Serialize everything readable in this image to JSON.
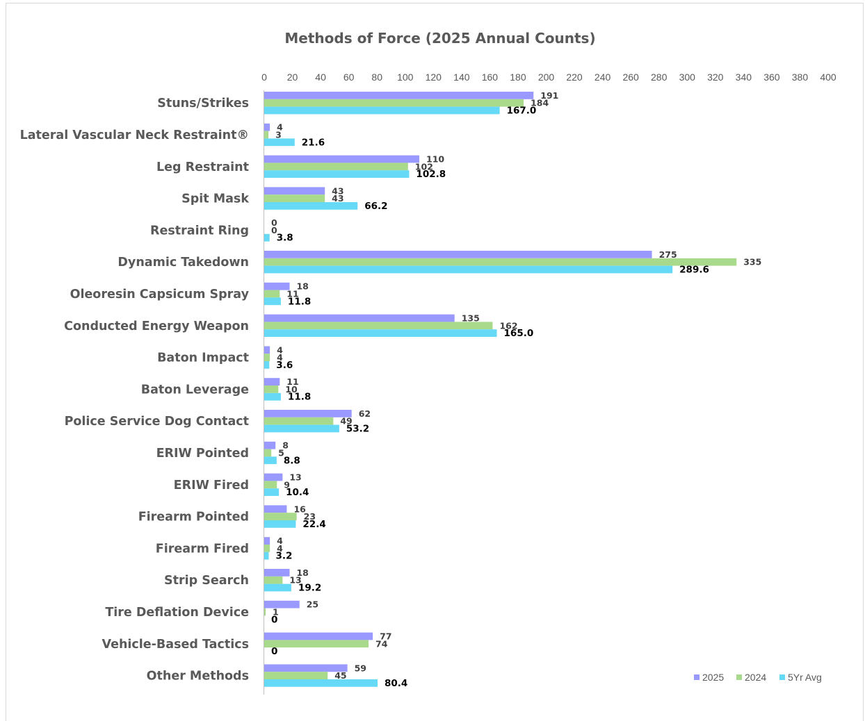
{
  "chart_data": {
    "type": "bar",
    "orientation": "horizontal",
    "title": "Methods of Force (2025 Annual Counts)",
    "categories": [
      "Stuns/Strikes",
      "Lateral Vascular Neck Restraint®",
      "Leg Restraint",
      "Spit Mask",
      "Restraint Ring",
      "Dynamic Takedown",
      "Oleoresin Capsicum Spray",
      "Conducted Energy Weapon",
      "Baton Impact",
      "Baton Leverage",
      "Police Service Dog Contact",
      "ERIW Pointed",
      "ERIW Fired",
      "Firearm Pointed",
      "Firearm Fired",
      "Strip Search",
      "Tire Deflation Device",
      "Vehicle-Based Tactics",
      "Other Methods"
    ],
    "series": [
      {
        "name": "2025",
        "color": "#9999ff",
        "values": [
          191,
          4,
          110,
          43,
          0,
          275,
          18,
          135,
          4,
          11,
          62,
          8,
          13,
          16,
          4,
          18,
          25,
          77,
          59
        ],
        "labels": [
          "191",
          "4",
          "110",
          "43",
          "0",
          "275",
          "18",
          "135",
          "4",
          "11",
          "62",
          "8",
          "13",
          "16",
          "4",
          "18",
          "25",
          "77",
          "59"
        ]
      },
      {
        "name": "2024",
        "color": "#a9d98b",
        "values": [
          184,
          3,
          102,
          43,
          0,
          335,
          11,
          162,
          4,
          10,
          49,
          5,
          9,
          23,
          4,
          13,
          1,
          74,
          45
        ],
        "labels": [
          "184",
          "3",
          "102",
          "43",
          "0",
          "335",
          "11",
          "162",
          "4",
          "10",
          "49",
          "5",
          "9",
          "23",
          "4",
          "13",
          "1",
          "74",
          "45"
        ]
      },
      {
        "name": "5Yr Avg",
        "color": "#66d9f7",
        "values": [
          167.0,
          21.6,
          102.8,
          66.2,
          3.8,
          289.6,
          11.8,
          165.0,
          3.6,
          11.8,
          53.2,
          8.8,
          10.4,
          22.4,
          3.2,
          19.2,
          0,
          0,
          80.4
        ],
        "labels": [
          "167.0",
          "21.6",
          "102.8",
          "66.2",
          "3.8",
          "289.6",
          "11.8",
          "165.0",
          "3.6",
          "11.8",
          "53.2",
          "8.8",
          "10.4",
          "22.4",
          "3.2",
          "19.2",
          "0",
          "0",
          "80.4"
        ]
      }
    ],
    "xlim": [
      0,
      400
    ],
    "xticks": [
      0,
      20,
      40,
      60,
      80,
      100,
      120,
      140,
      160,
      180,
      200,
      220,
      240,
      260,
      280,
      300,
      320,
      340,
      360,
      380,
      400
    ],
    "xtick_labels": [
      "0",
      "20",
      "40",
      "60",
      "80",
      "100",
      "120",
      "140",
      "160",
      "180",
      "200",
      "220",
      "240",
      "260",
      "280",
      "300",
      "320",
      "340",
      "360",
      "380",
      "400"
    ],
    "xaxis_position": "top",
    "grid": false,
    "legend": "bottom-right",
    "xlabel": "",
    "ylabel": ""
  }
}
